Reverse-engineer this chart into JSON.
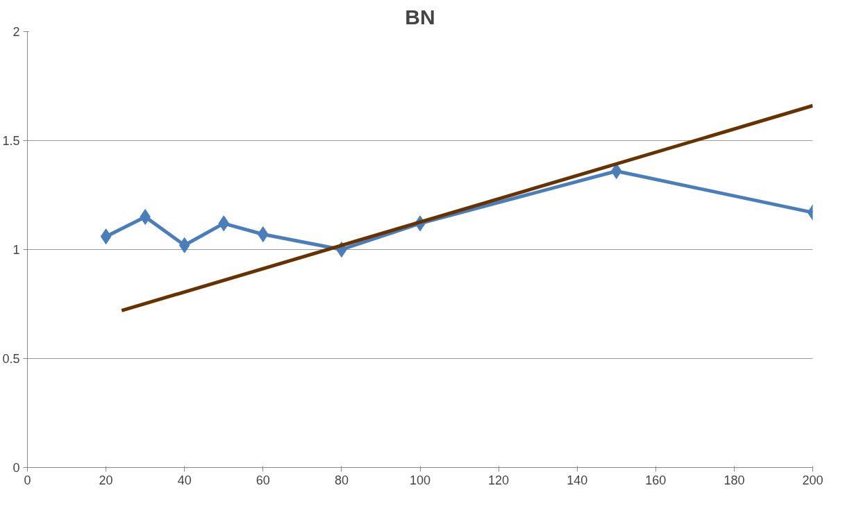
{
  "chart_data": {
    "type": "line",
    "title": "BN",
    "xlim": [
      0,
      200
    ],
    "xticks": [
      0,
      20,
      40,
      60,
      80,
      100,
      120,
      140,
      160,
      180,
      200
    ],
    "ylim": [
      0,
      2
    ],
    "yticks": [
      0,
      0.5,
      1,
      1.5,
      2
    ],
    "grid": "y",
    "series": [
      {
        "color": "#4a7ebb",
        "marker": "diamond",
        "x": [
          20,
          30,
          40,
          50,
          60,
          80,
          100,
          150,
          200
        ],
        "values": [
          1.06,
          1.15,
          1.02,
          1.12,
          1.07,
          1.0,
          1.12,
          1.36,
          1.17
        ]
      },
      {
        "color": "#663300",
        "marker": "none",
        "x": [
          24,
          200
        ],
        "values": [
          0.72,
          1.66
        ]
      }
    ]
  }
}
